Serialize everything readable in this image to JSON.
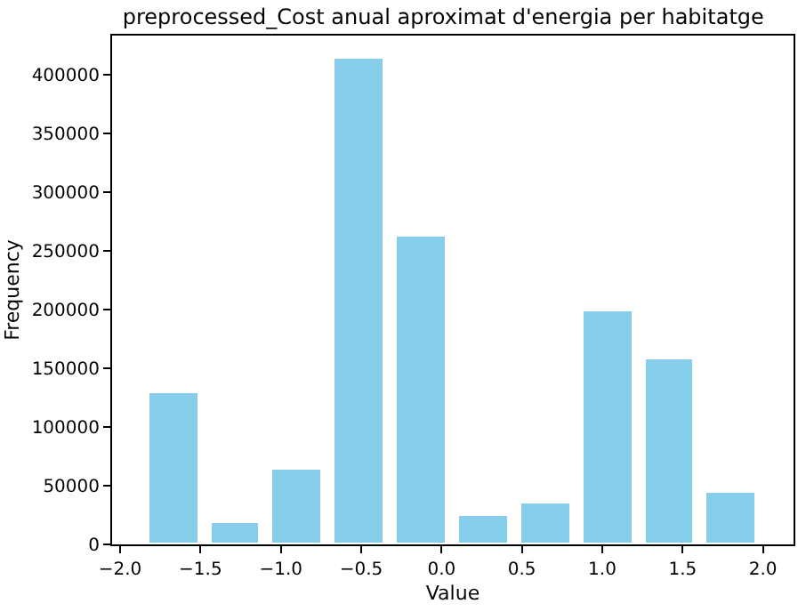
{
  "chart_data": {
    "type": "histogram",
    "title": "preprocessed_Cost anual aproximat d'energia per habitatge",
    "xlabel": "Value",
    "ylabel": "Frequency",
    "bins": [
      -1.86,
      -1.474,
      -1.088,
      -0.702,
      -0.316,
      0.07,
      0.456,
      0.842,
      1.228,
      1.614,
      2.0
    ],
    "values": [
      128000,
      18000,
      63000,
      413000,
      262000,
      24000,
      35000,
      198000,
      158000,
      44000
    ],
    "color": "#87ceeb",
    "xlim": [
      -2.05,
      2.19
    ],
    "xticks": [
      {
        "value": -2.0,
        "label": "−2.0"
      },
      {
        "value": -1.5,
        "label": "−1.5"
      },
      {
        "value": -1.0,
        "label": "−1.0"
      },
      {
        "value": -0.5,
        "label": "−0.5"
      },
      {
        "value": 0.0,
        "label": "0.0"
      },
      {
        "value": 0.5,
        "label": "0.5"
      },
      {
        "value": 1.0,
        "label": "1.0"
      },
      {
        "value": 1.5,
        "label": "1.5"
      },
      {
        "value": 2.0,
        "label": "2.0"
      }
    ],
    "ylim": [
      0,
      433000
    ],
    "yticks": [
      0,
      50000,
      100000,
      150000,
      200000,
      250000,
      300000,
      350000,
      400000
    ],
    "tick_labels": [
      "x",
      "y"
    ]
  }
}
